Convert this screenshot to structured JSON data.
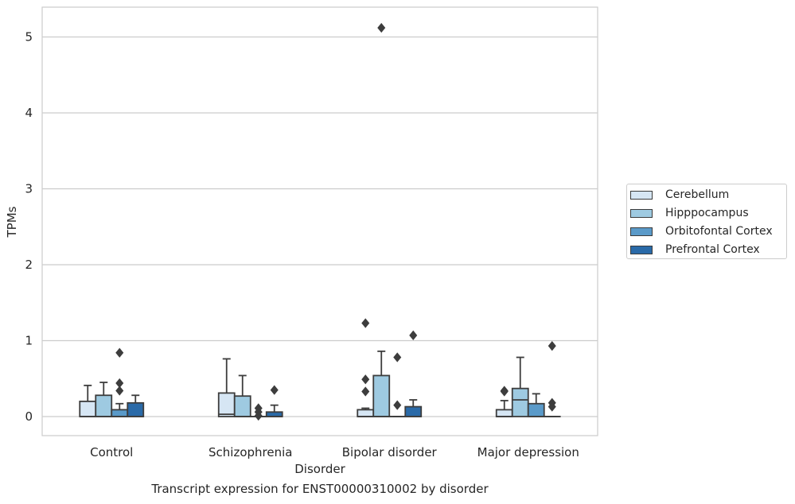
{
  "chart_data": {
    "type": "box",
    "title": "",
    "caption": "Transcript expression for ENST00000310002 by disorder",
    "xlabel": "Disorder",
    "ylabel": "TPMs",
    "ylim": [
      -0.25,
      5.4
    ],
    "yticks": [
      0,
      1,
      2,
      3,
      4,
      5
    ],
    "grid": "horizontal",
    "legend_position": "right",
    "categories": [
      "Control",
      "Schizophrenia",
      "Bipolar disorder",
      "Major depression"
    ],
    "series": [
      {
        "name": "Cerebellum",
        "color": "#d6e6f4",
        "boxes": [
          {
            "whislo": 0,
            "q1": 0,
            "med": 0,
            "q3": 0.2,
            "whishi": 0.41,
            "fliers": []
          },
          {
            "whislo": 0,
            "q1": 0,
            "med": 0.03,
            "q3": 0.31,
            "whishi": 0.76,
            "fliers": []
          },
          {
            "whislo": 0,
            "q1": 0,
            "med": 0,
            "q3": 0.09,
            "whishi": 0.11,
            "fliers": [
              1.23,
              0.49,
              0.33
            ]
          },
          {
            "whislo": 0,
            "q1": 0,
            "med": 0,
            "q3": 0.09,
            "whishi": 0.21,
            "fliers": [
              0.34,
              0.33
            ]
          }
        ]
      },
      {
        "name": "Hipppocampus",
        "color": "#9ecae1",
        "boxes": [
          {
            "whislo": 0,
            "q1": 0,
            "med": 0,
            "q3": 0.28,
            "whishi": 0.45,
            "fliers": []
          },
          {
            "whislo": 0,
            "q1": 0,
            "med": 0,
            "q3": 0.27,
            "whishi": 0.54,
            "fliers": []
          },
          {
            "whislo": 0,
            "q1": 0,
            "med": 0,
            "q3": 0.54,
            "whishi": 0.86,
            "fliers": [
              5.12
            ]
          },
          {
            "whislo": 0,
            "q1": 0,
            "med": 0.22,
            "q3": 0.37,
            "whishi": 0.78,
            "fliers": []
          }
        ]
      },
      {
        "name": "Orbitofontal Cortex",
        "color": "#5a9ac9",
        "boxes": [
          {
            "whislo": 0,
            "q1": 0,
            "med": 0,
            "q3": 0.09,
            "whishi": 0.17,
            "fliers": [
              0.84,
              0.44,
              0.34
            ]
          },
          {
            "whislo": 0,
            "q1": 0,
            "med": 0,
            "q3": 0,
            "whishi": 0,
            "fliers": [
              0.11,
              0.06,
              0.01
            ]
          },
          {
            "whislo": 0,
            "q1": 0,
            "med": 0,
            "q3": 0,
            "whishi": 0,
            "fliers": [
              0.78,
              0.15
            ]
          },
          {
            "whislo": 0,
            "q1": 0,
            "med": 0,
            "q3": 0.17,
            "whishi": 0.3,
            "fliers": []
          }
        ]
      },
      {
        "name": "Prefrontal Cortex",
        "color": "#2a6aa8",
        "boxes": [
          {
            "whislo": 0,
            "q1": 0,
            "med": 0,
            "q3": 0.18,
            "whishi": 0.28,
            "fliers": []
          },
          {
            "whislo": 0,
            "q1": 0,
            "med": 0,
            "q3": 0.06,
            "whishi": 0.15,
            "fliers": [
              0.35
            ]
          },
          {
            "whislo": 0,
            "q1": 0,
            "med": 0,
            "q3": 0.13,
            "whishi": 0.22,
            "fliers": [
              1.07
            ]
          },
          {
            "whislo": 0,
            "q1": 0,
            "med": 0,
            "q3": 0,
            "whishi": 0,
            "fliers": [
              0.93,
              0.18,
              0.13
            ]
          }
        ]
      }
    ]
  }
}
